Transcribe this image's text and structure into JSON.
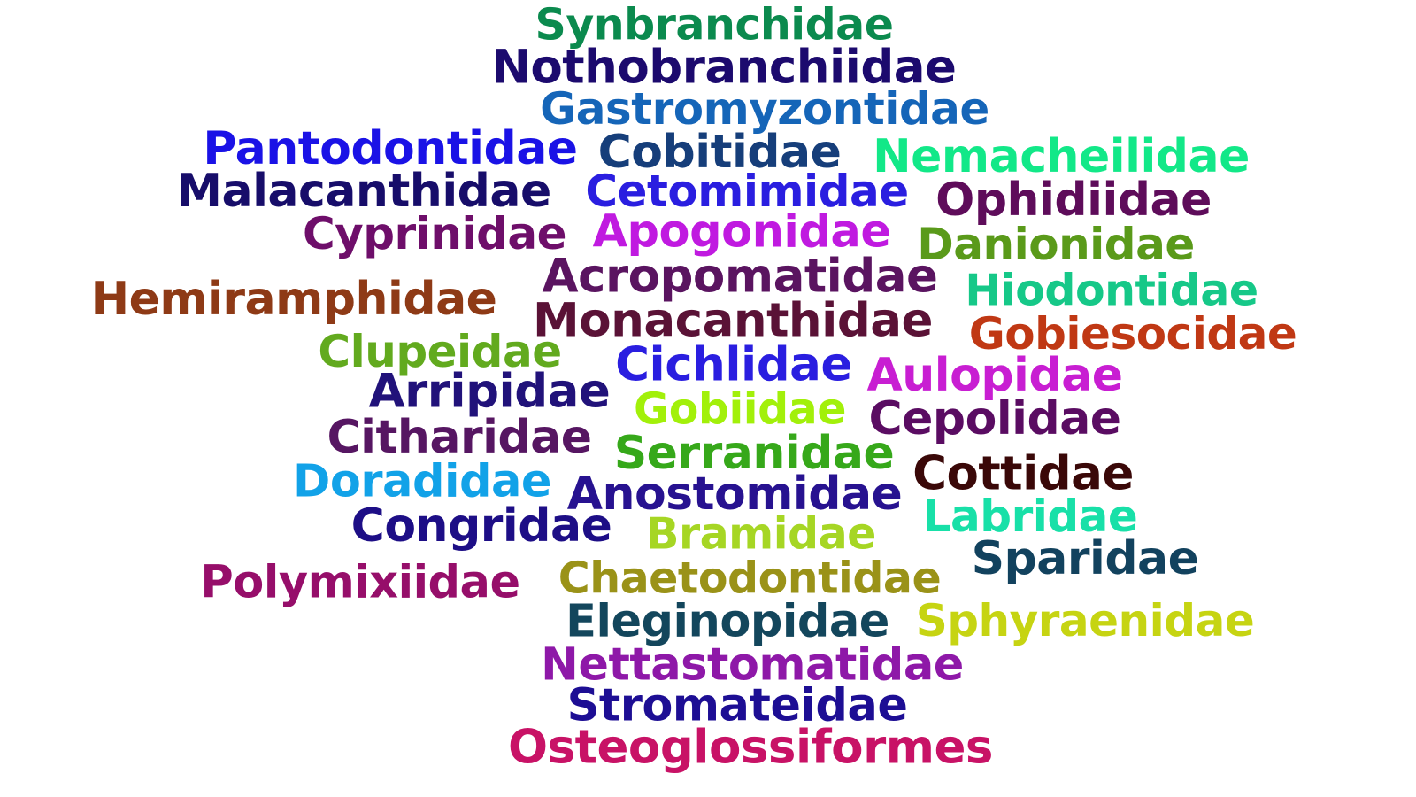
{
  "words": [
    {
      "text": "Synbranchidae",
      "color": "#0b8a4e"
    },
    {
      "text": "Nothobranchiidae",
      "color": "#1c0a6e"
    },
    {
      "text": "Gastromyzontidae",
      "color": "#1565b8"
    },
    {
      "text": "Pantodontidae",
      "color": "#1a12e6"
    },
    {
      "text": "Cobitidae",
      "color": "#163e7a"
    },
    {
      "text": "Nemacheilidae",
      "color": "#12e888"
    },
    {
      "text": "Malacanthidae",
      "color": "#170d6a"
    },
    {
      "text": "Cetomimidae",
      "color": "#2a1ee0"
    },
    {
      "text": "Ophidiidae",
      "color": "#5e0c5a"
    },
    {
      "text": "Cyprinidae",
      "color": "#6e0e6a"
    },
    {
      "text": "Apogonidae",
      "color": "#c01ae0"
    },
    {
      "text": "Danionidae",
      "color": "#5a9a1a"
    },
    {
      "text": "Acropomatidae",
      "color": "#5a1460"
    },
    {
      "text": "Hiodontidae",
      "color": "#16c888"
    },
    {
      "text": "Hemiramphidae",
      "color": "#8e3a16"
    },
    {
      "text": "Monacanthidae",
      "color": "#5a1236"
    },
    {
      "text": "Gobiesocidae",
      "color": "#c03814"
    },
    {
      "text": "Clupeidae",
      "color": "#62aa1e"
    },
    {
      "text": "Cichlidae",
      "color": "#2a1ee0"
    },
    {
      "text": "Aulopidae",
      "color": "#c81ed2"
    },
    {
      "text": "Arripidae",
      "color": "#21127a"
    },
    {
      "text": "Gobiidae",
      "color": "#a2f00a"
    },
    {
      "text": "Cepolidae",
      "color": "#5a0c62"
    },
    {
      "text": "Citharidae",
      "color": "#561662"
    },
    {
      "text": "Serranidae",
      "color": "#36a81a"
    },
    {
      "text": "Cottidae",
      "color": "#3a0808"
    },
    {
      "text": "Doradidae",
      "color": "#12a2e8"
    },
    {
      "text": "Anostomidae",
      "color": "#271290"
    },
    {
      "text": "Labridae",
      "color": "#18e0a8"
    },
    {
      "text": "Congridae",
      "color": "#1d0e86"
    },
    {
      "text": "Bramidae",
      "color": "#a6d624"
    },
    {
      "text": "Sparidae",
      "color": "#12425e"
    },
    {
      "text": "Polymixiidae",
      "color": "#960e6a"
    },
    {
      "text": "Chaetodontidae",
      "color": "#9a9218"
    },
    {
      "text": "Eleginopidae",
      "color": "#13465c"
    },
    {
      "text": "Sphyraenidae",
      "color": "#c6d412"
    },
    {
      "text": "Nettastomatidae",
      "color": "#8e18a8"
    },
    {
      "text": "Stromateidae",
      "color": "#1d0e94"
    },
    {
      "text": "Osteoglossiformes",
      "color": "#c81266"
    }
  ]
}
